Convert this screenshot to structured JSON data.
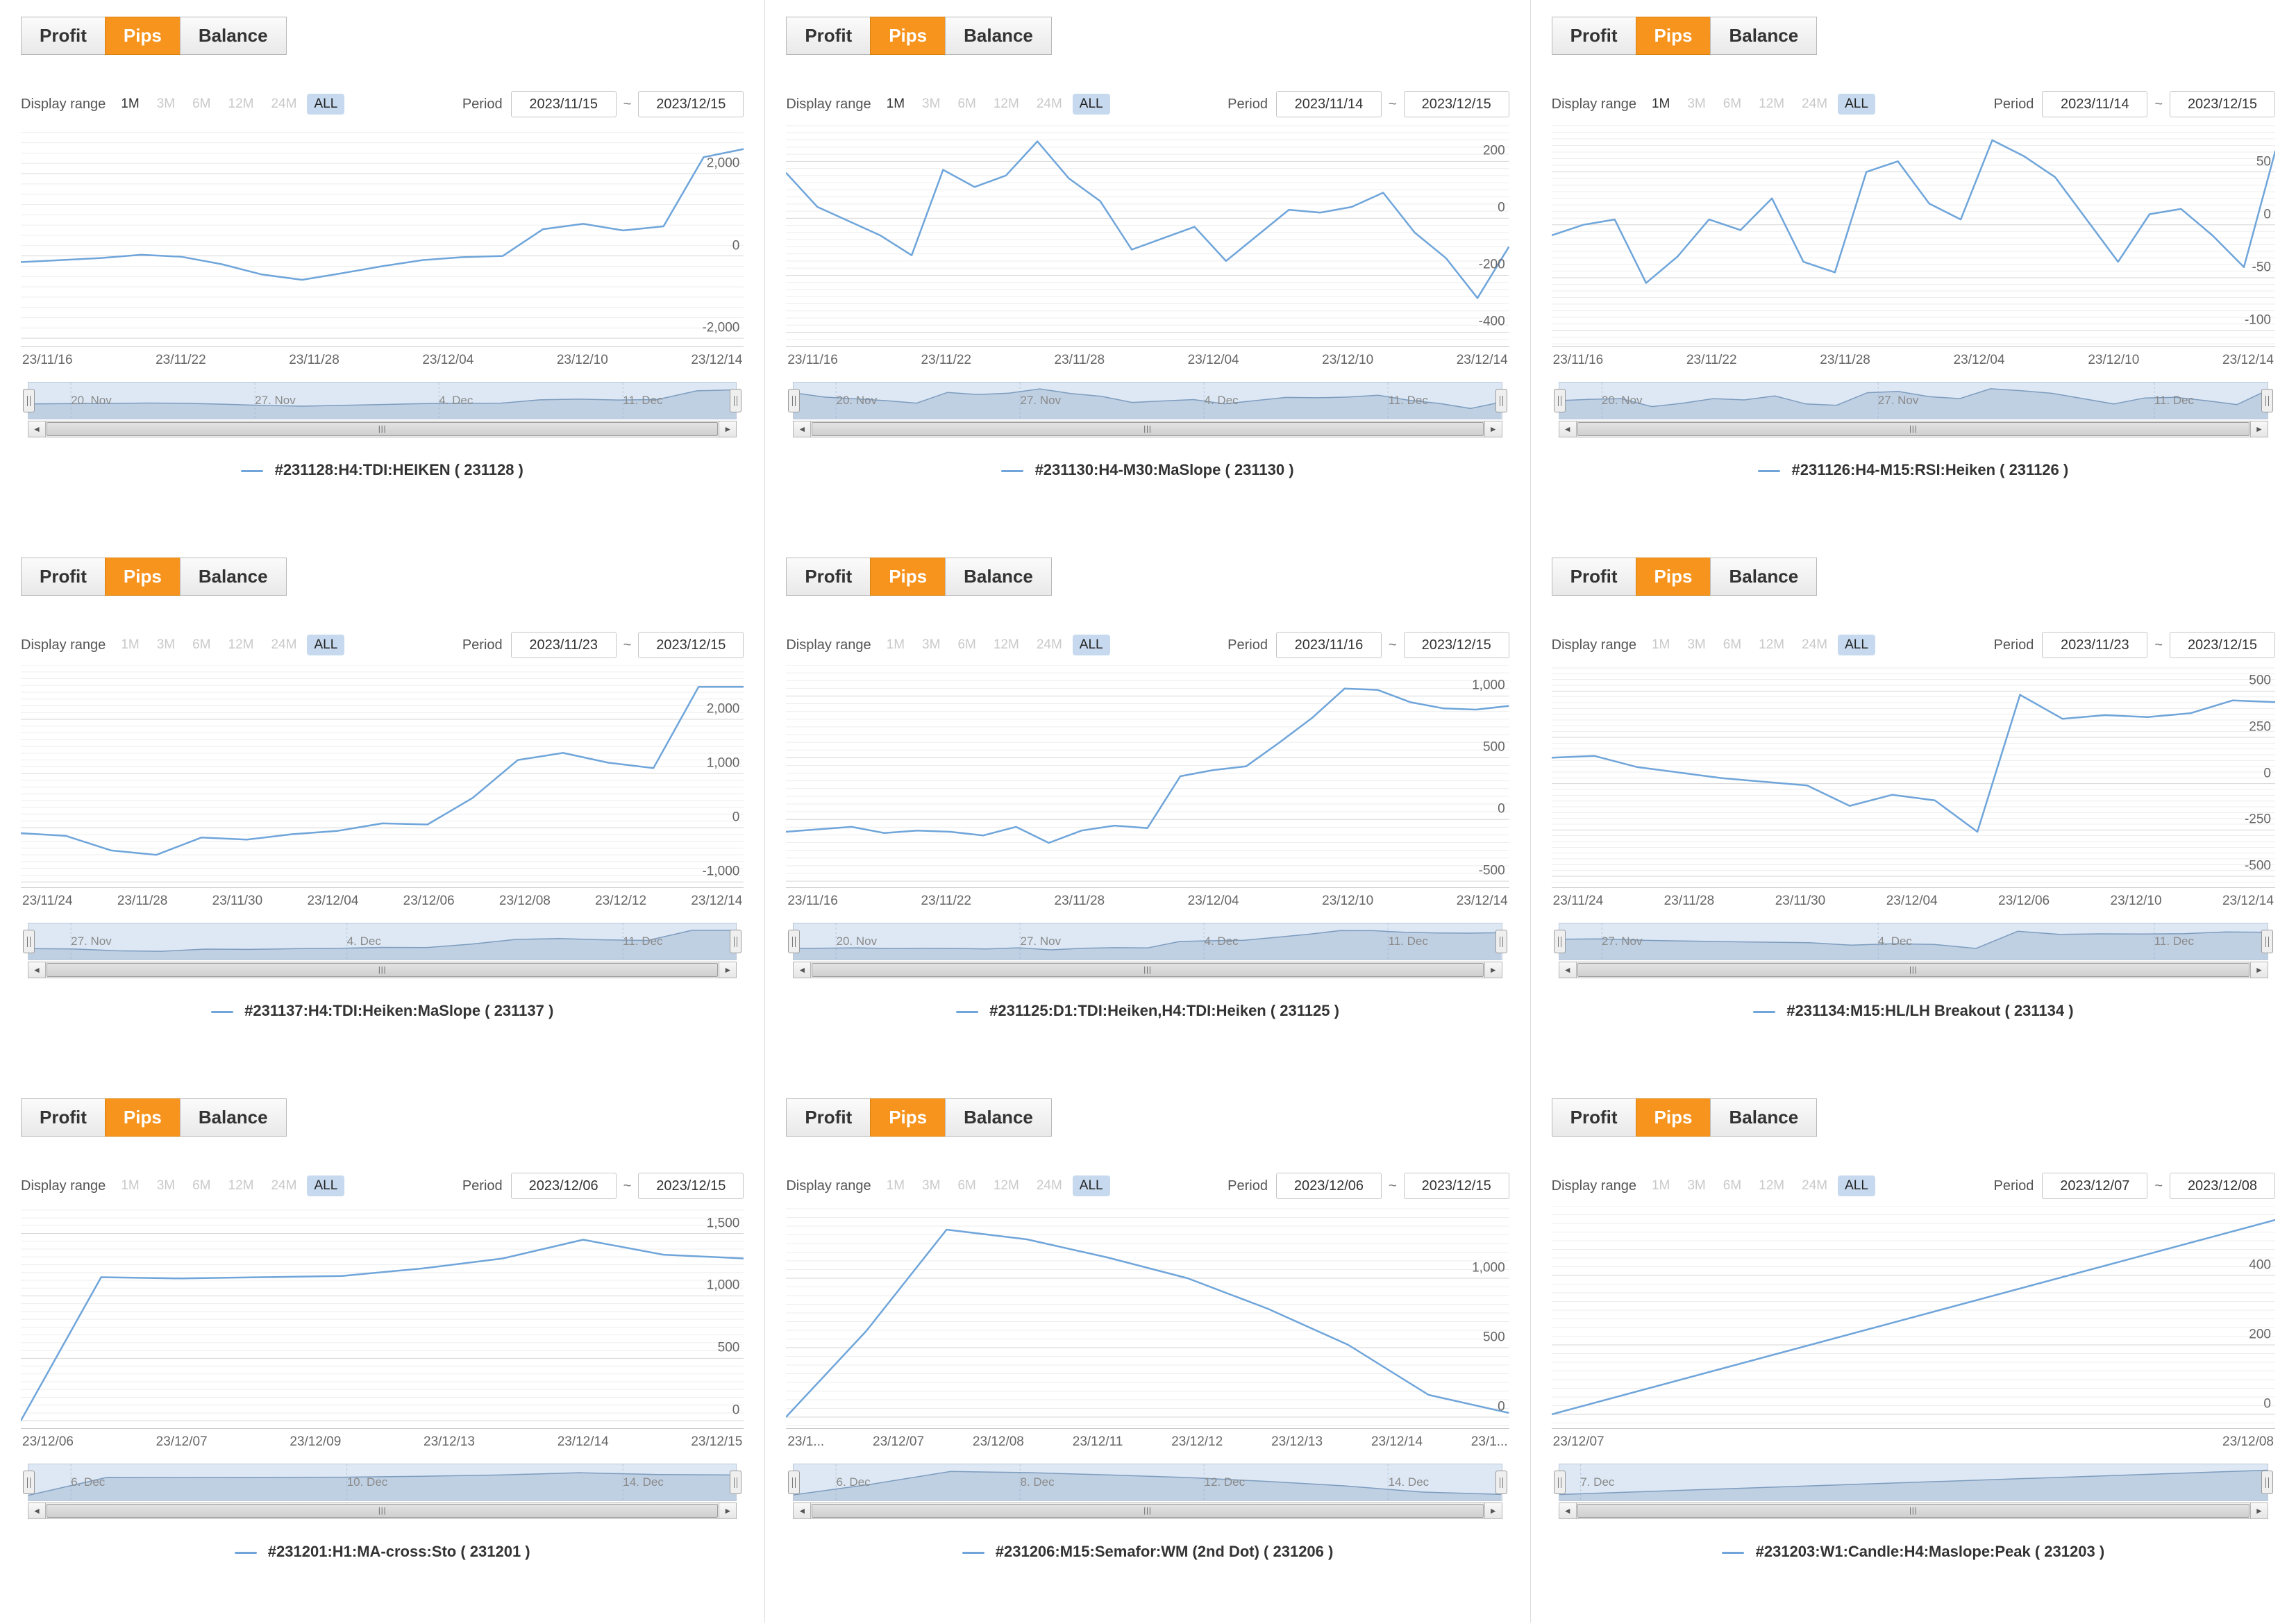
{
  "app": {
    "tabs": {
      "profit": "Profit",
      "pips": "Pips",
      "balance": "Balance",
      "active": "Pips"
    },
    "display_range_label": "Display range",
    "period_label": "Period",
    "period_separator": "~",
    "scrollbar": {
      "left_arrow": "◄",
      "right_arrow": "►",
      "grip": "|||"
    },
    "colors": {
      "accent_orange": "#f7941e",
      "series_line": "#6fa5da",
      "selected_range_bg": "#c6d9ee",
      "navigator_bg": "#dde8f4",
      "grid_minor": "#ededed",
      "grid_major": "#d6d6d6"
    }
  },
  "chart_data": [
    {
      "type": "line",
      "title": "#231128:H4:TDI:HEIKEN ( 231128 )",
      "period_start": "2023/11/15",
      "period_end": "2023/12/15",
      "range_buttons": [
        {
          "label": "1M",
          "state": "enabled"
        },
        {
          "label": "3M",
          "state": "disabled"
        },
        {
          "label": "6M",
          "state": "disabled"
        },
        {
          "label": "12M",
          "state": "disabled"
        },
        {
          "label": "24M",
          "state": "disabled"
        },
        {
          "label": "ALL",
          "state": "selected"
        }
      ],
      "x_ticks": [
        "23/11/16",
        "23/11/22",
        "23/11/28",
        "23/12/04",
        "23/12/10",
        "23/12/14"
      ],
      "y_ticks": [
        {
          "label": "2,000",
          "value": 2000
        },
        {
          "label": "0",
          "value": 0
        },
        {
          "label": "-2,000",
          "value": -2000
        }
      ],
      "ylim": [
        -2200,
        3200
      ],
      "values": [
        -150,
        -100,
        -50,
        30,
        -20,
        -200,
        -450,
        -580,
        -420,
        -250,
        -100,
        -30,
        0,
        650,
        780,
        620,
        720,
        2400,
        2600
      ],
      "navigator_labels": [
        "20. Nov",
        "27. Nov",
        "4. Dec",
        "11. Dec"
      ]
    },
    {
      "type": "line",
      "title": "#231130:H4-M30:MaSlope ( 231130 )",
      "period_start": "2023/11/14",
      "period_end": "2023/12/15",
      "range_buttons": [
        {
          "label": "1M",
          "state": "enabled"
        },
        {
          "label": "3M",
          "state": "disabled"
        },
        {
          "label": "6M",
          "state": "disabled"
        },
        {
          "label": "12M",
          "state": "disabled"
        },
        {
          "label": "24M",
          "state": "disabled"
        },
        {
          "label": "ALL",
          "state": "selected"
        }
      ],
      "x_ticks": [
        "23/11/16",
        "23/11/22",
        "23/11/28",
        "23/12/04",
        "23/12/10",
        "23/12/14"
      ],
      "y_ticks": [
        {
          "label": "200",
          "value": 200
        },
        {
          "label": "0",
          "value": 0
        },
        {
          "label": "-200",
          "value": -200
        },
        {
          "label": "-400",
          "value": -400
        }
      ],
      "ylim": [
        -450,
        330
      ],
      "values": [
        160,
        40,
        -10,
        -60,
        -130,
        170,
        110,
        150,
        270,
        140,
        60,
        -110,
        -70,
        -30,
        -150,
        -60,
        30,
        20,
        40,
        90,
        -50,
        -140,
        -280,
        -100
      ],
      "navigator_labels": [
        "20. Nov",
        "27. Nov",
        "4. Dec",
        "11. Dec"
      ]
    },
    {
      "type": "line",
      "title": "#231126:H4-M15:RSI:Heiken ( 231126 )",
      "period_start": "2023/11/14",
      "period_end": "2023/12/15",
      "range_buttons": [
        {
          "label": "1M",
          "state": "enabled"
        },
        {
          "label": "3M",
          "state": "disabled"
        },
        {
          "label": "6M",
          "state": "disabled"
        },
        {
          "label": "12M",
          "state": "disabled"
        },
        {
          "label": "24M",
          "state": "disabled"
        },
        {
          "label": "ALL",
          "state": "selected"
        }
      ],
      "x_ticks": [
        "23/11/16",
        "23/11/22",
        "23/11/28",
        "23/12/04",
        "23/12/10",
        "23/12/14"
      ],
      "y_ticks": [
        {
          "label": "50",
          "value": 50
        },
        {
          "label": "0",
          "value": 0
        },
        {
          "label": "-50",
          "value": -50
        },
        {
          "label": "-100",
          "value": -100
        }
      ],
      "ylim": [
        -115,
        95
      ],
      "values": [
        -10,
        0,
        5,
        -55,
        -30,
        5,
        -5,
        25,
        -35,
        -45,
        50,
        60,
        20,
        5,
        80,
        65,
        45,
        5,
        -35,
        10,
        15,
        -10,
        -40,
        70
      ],
      "navigator_labels": [
        "20. Nov",
        "27. Nov",
        "11. Dec"
      ]
    },
    {
      "type": "line",
      "title": "#231137:H4:TDI:Heiken:MaSlope ( 231137 )",
      "period_start": "2023/11/23",
      "period_end": "2023/12/15",
      "range_buttons": [
        {
          "label": "1M",
          "state": "disabled"
        },
        {
          "label": "3M",
          "state": "disabled"
        },
        {
          "label": "6M",
          "state": "disabled"
        },
        {
          "label": "12M",
          "state": "disabled"
        },
        {
          "label": "24M",
          "state": "disabled"
        },
        {
          "label": "ALL",
          "state": "selected"
        }
      ],
      "x_ticks": [
        "23/11/24",
        "23/11/28",
        "23/11/30",
        "23/12/04",
        "23/12/06",
        "23/12/08",
        "23/12/12",
        "23/12/14"
      ],
      "y_ticks": [
        {
          "label": "2,000",
          "value": 2000
        },
        {
          "label": "1,000",
          "value": 1000
        },
        {
          "label": "0",
          "value": 0
        },
        {
          "label": "-1,000",
          "value": -1000
        }
      ],
      "ylim": [
        -1100,
        3000
      ],
      "values": [
        -100,
        -150,
        -420,
        -500,
        -180,
        -220,
        -120,
        -60,
        80,
        60,
        550,
        1250,
        1380,
        1200,
        1100,
        2600,
        2600
      ],
      "navigator_labels": [
        "27. Nov",
        "4. Dec",
        "11. Dec"
      ]
    },
    {
      "type": "line",
      "title": "#231125:D1:TDI:Heiken,H4:TDI:Heiken ( 231125 )",
      "period_start": "2023/11/16",
      "period_end": "2023/12/15",
      "range_buttons": [
        {
          "label": "1M",
          "state": "disabled"
        },
        {
          "label": "3M",
          "state": "disabled"
        },
        {
          "label": "6M",
          "state": "disabled"
        },
        {
          "label": "12M",
          "state": "disabled"
        },
        {
          "label": "24M",
          "state": "disabled"
        },
        {
          "label": "ALL",
          "state": "selected"
        }
      ],
      "x_ticks": [
        "23/11/16",
        "23/11/22",
        "23/11/28",
        "23/12/04",
        "23/12/10",
        "23/12/14"
      ],
      "y_ticks": [
        {
          "label": "1,000",
          "value": 1000
        },
        {
          "label": "500",
          "value": 500
        },
        {
          "label": "0",
          "value": 0
        },
        {
          "label": "-500",
          "value": -500
        }
      ],
      "ylim": [
        -550,
        1250
      ],
      "values": [
        -100,
        -80,
        -60,
        -110,
        -90,
        -100,
        -130,
        -60,
        -190,
        -90,
        -50,
        -70,
        350,
        400,
        430,
        620,
        820,
        1060,
        1050,
        950,
        900,
        890,
        920
      ],
      "navigator_labels": [
        "20. Nov",
        "27. Nov",
        "4. Dec",
        "11. Dec"
      ]
    },
    {
      "type": "line",
      "title": "#231134:M15:HL/LH Breakout ( 231134 )",
      "period_start": "2023/11/23",
      "period_end": "2023/12/15",
      "range_buttons": [
        {
          "label": "1M",
          "state": "disabled"
        },
        {
          "label": "3M",
          "state": "disabled"
        },
        {
          "label": "6M",
          "state": "disabled"
        },
        {
          "label": "12M",
          "state": "disabled"
        },
        {
          "label": "24M",
          "state": "disabled"
        },
        {
          "label": "ALL",
          "state": "selected"
        }
      ],
      "x_ticks": [
        "23/11/24",
        "23/11/28",
        "23/11/30",
        "23/12/04",
        "23/12/06",
        "23/12/10",
        "23/12/14"
      ],
      "y_ticks": [
        {
          "label": "500",
          "value": 500
        },
        {
          "label": "250",
          "value": 250
        },
        {
          "label": "0",
          "value": 0
        },
        {
          "label": "-250",
          "value": -250
        },
        {
          "label": "-500",
          "value": -500
        }
      ],
      "ylim": [
        -560,
        640
      ],
      "values": [
        140,
        150,
        90,
        60,
        30,
        10,
        -10,
        -120,
        -60,
        -90,
        -260,
        480,
        350,
        370,
        360,
        380,
        450,
        440
      ],
      "navigator_labels": [
        "27. Nov",
        "4. Dec",
        "11. Dec"
      ]
    },
    {
      "type": "line",
      "title": "#231201:H1:MA-cross:Sto ( 231201 )",
      "period_start": "2023/12/06",
      "period_end": "2023/12/15",
      "range_buttons": [
        {
          "label": "1M",
          "state": "disabled"
        },
        {
          "label": "3M",
          "state": "disabled"
        },
        {
          "label": "6M",
          "state": "disabled"
        },
        {
          "label": "12M",
          "state": "disabled"
        },
        {
          "label": "24M",
          "state": "disabled"
        },
        {
          "label": "ALL",
          "state": "selected"
        }
      ],
      "x_ticks": [
        "23/12/06",
        "23/12/07",
        "23/12/09",
        "23/12/13",
        "23/12/14",
        "23/12/15"
      ],
      "y_ticks": [
        {
          "label": "1,500",
          "value": 1500
        },
        {
          "label": "1,000",
          "value": 1000
        },
        {
          "label": "500",
          "value": 500
        },
        {
          "label": "0",
          "value": 0
        }
      ],
      "ylim": [
        -60,
        1720
      ],
      "values": [
        0,
        1150,
        1140,
        1150,
        1160,
        1220,
        1300,
        1450,
        1330,
        1300
      ],
      "navigator_labels": [
        "6. Dec",
        "10. Dec",
        "14. Dec"
      ]
    },
    {
      "type": "line",
      "title": "#231206:M15:Semafor:WM (2nd Dot) ( 231206 )",
      "period_start": "2023/12/06",
      "period_end": "2023/12/15",
      "range_buttons": [
        {
          "label": "1M",
          "state": "disabled"
        },
        {
          "label": "3M",
          "state": "disabled"
        },
        {
          "label": "6M",
          "state": "disabled"
        },
        {
          "label": "12M",
          "state": "disabled"
        },
        {
          "label": "24M",
          "state": "disabled"
        },
        {
          "label": "ALL",
          "state": "selected"
        }
      ],
      "x_ticks": [
        "23/1...",
        "23/12/07",
        "23/12/08",
        "23/12/11",
        "23/12/12",
        "23/12/13",
        "23/12/14",
        "23/1..."
      ],
      "y_ticks": [
        {
          "label": "1,000",
          "value": 1000
        },
        {
          "label": "500",
          "value": 500
        },
        {
          "label": "0",
          "value": 0
        }
      ],
      "ylim": [
        -80,
        1520
      ],
      "values": [
        0,
        620,
        1350,
        1280,
        1150,
        1000,
        780,
        520,
        160,
        30
      ],
      "navigator_labels": [
        "6. Dec",
        "8. Dec",
        "12. Dec",
        "14. Dec"
      ]
    },
    {
      "type": "line",
      "title": "#231203:W1:Candle:H4:Maslope:Peak ( 231203 )",
      "period_start": "2023/12/07",
      "period_end": "2023/12/08",
      "range_buttons": [
        {
          "label": "1M",
          "state": "disabled"
        },
        {
          "label": "3M",
          "state": "disabled"
        },
        {
          "label": "6M",
          "state": "disabled"
        },
        {
          "label": "12M",
          "state": "disabled"
        },
        {
          "label": "24M",
          "state": "disabled"
        },
        {
          "label": "ALL",
          "state": "selected"
        }
      ],
      "x_ticks": [
        "23/12/07",
        "23/12/08"
      ],
      "y_ticks": [
        {
          "label": "400",
          "value": 400
        },
        {
          "label": "200",
          "value": 200
        },
        {
          "label": "0",
          "value": 0
        }
      ],
      "ylim": [
        -40,
        600
      ],
      "values": [
        0,
        560
      ],
      "navigator_labels": [
        "7. Dec"
      ]
    }
  ]
}
